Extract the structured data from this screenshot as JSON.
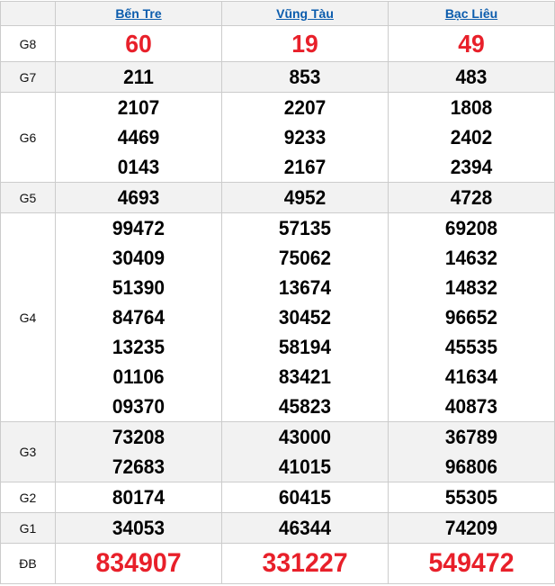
{
  "header": {
    "corner": "",
    "provinces": [
      "Bến Tre",
      "Vũng Tàu",
      "Bạc Liêu"
    ]
  },
  "colors": {
    "link": "#0b5cad",
    "highlight": "#e8202a",
    "alt_row": "#f2f2f2",
    "border": "#cccccc"
  },
  "rows": [
    {
      "label": "G8",
      "cls": "g8 red",
      "alt": false,
      "values": [
        [
          "60"
        ],
        [
          "19"
        ],
        [
          "49"
        ]
      ]
    },
    {
      "label": "G7",
      "cls": "",
      "alt": true,
      "values": [
        [
          "211"
        ],
        [
          "853"
        ],
        [
          "483"
        ]
      ]
    },
    {
      "label": "G6",
      "cls": "",
      "alt": false,
      "values": [
        [
          "2107",
          "4469",
          "0143"
        ],
        [
          "2207",
          "9233",
          "2167"
        ],
        [
          "1808",
          "2402",
          "2394"
        ]
      ]
    },
    {
      "label": "G5",
      "cls": "",
      "alt": true,
      "values": [
        [
          "4693"
        ],
        [
          "4952"
        ],
        [
          "4728"
        ]
      ]
    },
    {
      "label": "G4",
      "cls": "",
      "alt": false,
      "values": [
        [
          "99472",
          "30409",
          "51390",
          "84764",
          "13235",
          "01106",
          "09370"
        ],
        [
          "57135",
          "75062",
          "13674",
          "30452",
          "58194",
          "83421",
          "45823"
        ],
        [
          "69208",
          "14632",
          "14832",
          "96652",
          "45535",
          "41634",
          "40873"
        ]
      ]
    },
    {
      "label": "G3",
      "cls": "",
      "alt": true,
      "values": [
        [
          "73208",
          "72683"
        ],
        [
          "43000",
          "41015"
        ],
        [
          "36789",
          "96806"
        ]
      ]
    },
    {
      "label": "G2",
      "cls": "",
      "alt": false,
      "values": [
        [
          "80174"
        ],
        [
          "60415"
        ],
        [
          "55305"
        ]
      ]
    },
    {
      "label": "G1",
      "cls": "",
      "alt": true,
      "values": [
        [
          "34053"
        ],
        [
          "46344"
        ],
        [
          "74209"
        ]
      ]
    },
    {
      "label": "ĐB",
      "cls": "db red",
      "alt": false,
      "values": [
        [
          "834907"
        ],
        [
          "331227"
        ],
        [
          "549472"
        ]
      ]
    }
  ]
}
